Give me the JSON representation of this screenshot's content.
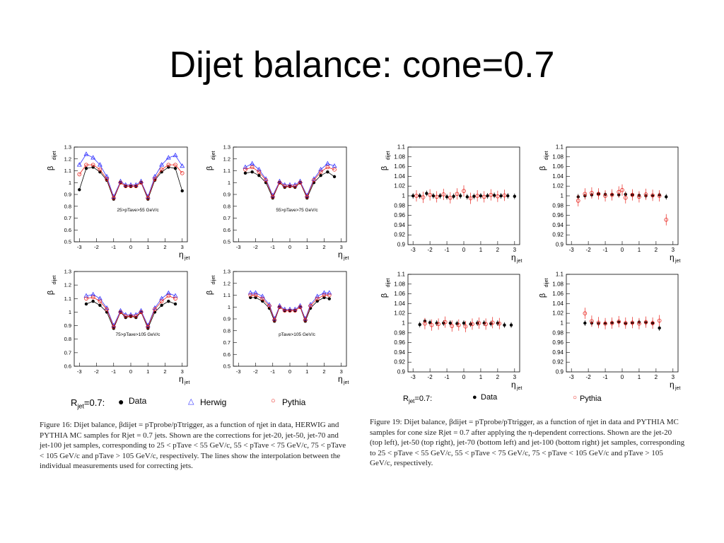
{
  "slide": {
    "title": "Dijet balance: cone=0.7"
  },
  "left_figure": {
    "legend": {
      "rjet_label": "R",
      "rjet_sub": "jet",
      "rjet_val": "=0.7:",
      "data": "Data",
      "herwig": "Herwig",
      "pythia": "Pythia"
    },
    "caption": "Figure 16: Dijet balance, βdijet = pTprobe/pTtrigger, as a function of ηjet in data, HERWIG and PYTHIA MC samples for Rjet = 0.7 jets. Shown are the corrections for jet-20, jet-50, jet-70 and jet-100 jet samples, corresponding to 25 < pTave < 55 GeV/c, 55 < pTave < 75 GeV/c, 75 < pTave < 105 GeV/c and pTave > 105 GeV/c, respectively. The lines show the interpolation between the individual measurements used for correcting jets."
  },
  "right_figure": {
    "legend": {
      "rjet_label": "R",
      "rjet_sub": "jet",
      "rjet_val": "=0.7:",
      "data": "Data",
      "pythia": "Pythia"
    },
    "caption": "Figure 19: Dijet balance, βdijet = pTprobe/pTtrigger, as a function of ηjet in data and PYTHIA MC samples for cone size Rjet = 0.7 after applying the η-dependent corrections. Shown are the jet-20 (top left), jet-50 (top right), jet-70 (bottom left) and jet-100 (bottom right) jet samples, corresponding to 25 < pTave < 55 GeV/c, 55 < pTave < 75 GeV/c, 75 < pTave < 105 GeV/c and pTave > 105 GeV/c, respectively."
  },
  "colors": {
    "data": "#000000",
    "herwig": "#3333ff",
    "pythia": "#e8231d"
  },
  "chart_data": [
    {
      "type": "scatter",
      "panel": "fig16-jet20",
      "label": "25>pT^ave>55 GeV/c",
      "ylabel": "β_dijet",
      "xlabel": "η_jet",
      "xlim": [
        -3.3,
        3.3
      ],
      "ylim": [
        0.5,
        1.3
      ],
      "yticks": [
        "0.5",
        "0.6",
        "0.7",
        "0.8",
        "0.9",
        "1",
        "1.1",
        "1.2",
        "1.3"
      ],
      "xticks": [
        "-3",
        "-2",
        "-1",
        "0",
        "1",
        "2",
        "3"
      ],
      "series": [
        {
          "name": "Data",
          "x": [
            -3.0,
            -2.6,
            -2.2,
            -1.8,
            -1.4,
            -1.0,
            -0.6,
            -0.3,
            0,
            0.3,
            0.6,
            1.0,
            1.4,
            1.8,
            2.2,
            2.6,
            3.0
          ],
          "y": [
            0.94,
            1.12,
            1.13,
            1.09,
            1.02,
            0.86,
            1.0,
            0.97,
            0.97,
            0.97,
            1.0,
            0.86,
            1.02,
            1.09,
            1.13,
            1.12,
            0.93
          ]
        },
        {
          "name": "Herwig",
          "x": [
            -3.0,
            -2.6,
            -2.2,
            -1.8,
            -1.4,
            -1.0,
            -0.6,
            -0.3,
            0,
            0.3,
            0.6,
            1.0,
            1.4,
            1.8,
            2.2,
            2.6,
            3.0
          ],
          "y": [
            1.15,
            1.24,
            1.21,
            1.15,
            1.05,
            0.88,
            1.01,
            0.98,
            0.98,
            0.98,
            1.01,
            0.88,
            1.05,
            1.15,
            1.21,
            1.23,
            1.14
          ]
        },
        {
          "name": "Pythia",
          "x": [
            -3.0,
            -2.6,
            -2.2,
            -1.8,
            -1.4,
            -1.0,
            -0.6,
            -0.3,
            0,
            0.3,
            0.6,
            1.0,
            1.4,
            1.8,
            2.2,
            2.6,
            3.0
          ],
          "y": [
            1.07,
            1.15,
            1.15,
            1.11,
            1.03,
            0.87,
            1.0,
            0.97,
            0.97,
            0.97,
            1.0,
            0.87,
            1.03,
            1.11,
            1.15,
            1.15,
            1.08
          ]
        }
      ]
    },
    {
      "type": "scatter",
      "panel": "fig16-jet50",
      "label": "55>pT^ave>75 GeV/c",
      "ylabel": "β_dijet",
      "xlabel": "η_jet",
      "xlim": [
        -3.3,
        3.3
      ],
      "ylim": [
        0.5,
        1.3
      ],
      "yticks": [
        "0.5",
        "0.6",
        "0.7",
        "0.8",
        "0.9",
        "1",
        "1.1",
        "1.2",
        "1.3"
      ],
      "xticks": [
        "-3",
        "-2",
        "-1",
        "0",
        "1",
        "2",
        "3"
      ],
      "series": [
        {
          "name": "Data",
          "x": [
            -2.6,
            -2.2,
            -1.8,
            -1.4,
            -1.0,
            -0.6,
            -0.3,
            0,
            0.3,
            0.6,
            1.0,
            1.4,
            1.8,
            2.2,
            2.6
          ],
          "y": [
            1.08,
            1.09,
            1.06,
            1.0,
            0.87,
            1.0,
            0.96,
            0.97,
            0.96,
            1.0,
            0.87,
            1.0,
            1.06,
            1.09,
            1.05
          ]
        },
        {
          "name": "Herwig",
          "x": [
            -2.6,
            -2.2,
            -1.8,
            -1.4,
            -1.0,
            -0.6,
            -0.3,
            0,
            0.3,
            0.6,
            1.0,
            1.4,
            1.8,
            2.2,
            2.6
          ],
          "y": [
            1.13,
            1.16,
            1.11,
            1.03,
            0.89,
            1.01,
            0.98,
            0.98,
            0.98,
            1.01,
            0.89,
            1.03,
            1.11,
            1.16,
            1.14
          ]
        },
        {
          "name": "Pythia",
          "x": [
            -2.6,
            -2.2,
            -1.8,
            -1.4,
            -1.0,
            -0.6,
            -0.3,
            0,
            0.3,
            0.6,
            1.0,
            1.4,
            1.8,
            2.2,
            2.6
          ],
          "y": [
            1.11,
            1.13,
            1.09,
            1.02,
            0.88,
            1.0,
            0.97,
            0.97,
            0.97,
            1.0,
            0.88,
            1.02,
            1.09,
            1.13,
            1.11
          ]
        }
      ]
    },
    {
      "type": "scatter",
      "panel": "fig16-jet70",
      "label": "75>pT^ave>105 GeV/c",
      "ylabel": "β_dijet",
      "xlabel": "η_jet",
      "xlim": [
        -3.3,
        3.3
      ],
      "ylim": [
        0.6,
        1.3
      ],
      "yticks": [
        "0.6",
        "0.7",
        "0.8",
        "0.9",
        "1",
        "1.1",
        "1.2",
        "1.3"
      ],
      "xticks": [
        "-3",
        "-2",
        "-1",
        "0",
        "1",
        "2",
        "3"
      ],
      "series": [
        {
          "name": "Data",
          "x": [
            -2.6,
            -2.2,
            -1.8,
            -1.4,
            -1.0,
            -0.6,
            -0.3,
            0,
            0.3,
            0.6,
            1.0,
            1.4,
            1.8,
            2.2,
            2.6
          ],
          "y": [
            1.06,
            1.08,
            1.05,
            1.0,
            0.88,
            1.0,
            0.96,
            0.97,
            0.96,
            1.0,
            0.88,
            1.0,
            1.05,
            1.08,
            1.06
          ]
        },
        {
          "name": "Herwig",
          "x": [
            -2.6,
            -2.2,
            -1.8,
            -1.4,
            -1.0,
            -0.6,
            -0.3,
            0,
            0.3,
            0.6,
            1.0,
            1.4,
            1.8,
            2.2,
            2.6
          ],
          "y": [
            1.12,
            1.13,
            1.1,
            1.03,
            0.9,
            1.01,
            0.98,
            0.98,
            0.98,
            1.01,
            0.9,
            1.03,
            1.1,
            1.14,
            1.12
          ]
        },
        {
          "name": "Pythia",
          "x": [
            -2.6,
            -2.2,
            -1.8,
            -1.4,
            -1.0,
            -0.6,
            -0.3,
            0,
            0.3,
            0.6,
            1.0,
            1.4,
            1.8,
            2.2,
            2.6
          ],
          "y": [
            1.1,
            1.11,
            1.08,
            1.02,
            0.89,
            1.0,
            0.97,
            0.97,
            0.97,
            1.0,
            0.89,
            1.02,
            1.08,
            1.12,
            1.1
          ]
        }
      ]
    },
    {
      "type": "scatter",
      "panel": "fig16-jet100",
      "label": "pT^ave>105 GeV/c",
      "ylabel": "β_dijet",
      "xlabel": "η_jet",
      "xlim": [
        -3.3,
        3.3
      ],
      "ylim": [
        0.5,
        1.3
      ],
      "yticks": [
        "0.5",
        "0.6",
        "0.7",
        "0.8",
        "0.9",
        "1",
        "1.1",
        "1.2",
        "1.3"
      ],
      "xticks": [
        "-3",
        "-2",
        "-1",
        "0",
        "1",
        "2",
        "3"
      ],
      "series": [
        {
          "name": "Data",
          "x": [
            -2.3,
            -2.0,
            -1.6,
            -1.2,
            -0.9,
            -0.6,
            -0.3,
            0,
            0.3,
            0.6,
            0.9,
            1.2,
            1.6,
            2.0,
            2.3
          ],
          "y": [
            1.08,
            1.08,
            1.05,
            0.99,
            0.88,
            1.0,
            0.97,
            0.97,
            0.97,
            1.0,
            0.88,
            0.99,
            1.05,
            1.08,
            1.07
          ]
        },
        {
          "name": "Herwig",
          "x": [
            -2.3,
            -2.0,
            -1.6,
            -1.2,
            -0.9,
            -0.6,
            -0.3,
            0,
            0.3,
            0.6,
            0.9,
            1.2,
            1.6,
            2.0,
            2.3
          ],
          "y": [
            1.12,
            1.12,
            1.09,
            1.02,
            0.9,
            1.01,
            0.98,
            0.98,
            0.98,
            1.01,
            0.9,
            1.02,
            1.09,
            1.12,
            1.12
          ]
        },
        {
          "name": "Pythia",
          "x": [
            -2.3,
            -2.0,
            -1.6,
            -1.2,
            -0.9,
            -0.6,
            -0.3,
            0,
            0.3,
            0.6,
            0.9,
            1.2,
            1.6,
            2.0,
            2.3
          ],
          "y": [
            1.1,
            1.1,
            1.07,
            1.01,
            0.89,
            1.0,
            0.97,
            0.97,
            0.97,
            1.0,
            0.89,
            1.01,
            1.07,
            1.1,
            1.1
          ]
        }
      ]
    },
    {
      "type": "scatter",
      "panel": "fig19-jet20",
      "ylabel": "β_dijet",
      "xlabel": "η_jet",
      "xlim": [
        -3.3,
        3.3
      ],
      "ylim": [
        0.9,
        1.1
      ],
      "yticks": [
        "0.9",
        "0.92",
        "0.94",
        "0.96",
        "0.98",
        "1",
        "1.02",
        "1.04",
        "1.06",
        "1.08",
        "1.1"
      ],
      "xticks": [
        "-3",
        "-2",
        "-1",
        "0",
        "1",
        "2",
        "3"
      ],
      "series": [
        {
          "name": "Data",
          "x": [
            -3.0,
            -2.6,
            -2.2,
            -1.8,
            -1.4,
            -1.0,
            -0.6,
            -0.2,
            0.2,
            0.6,
            1.0,
            1.4,
            1.8,
            2.2,
            2.6,
            3.0
          ],
          "y": [
            1.0,
            1.0,
            1.005,
            1.0,
            1.0,
            0.998,
            0.999,
            1.0,
            0.998,
            0.999,
            1.0,
            1.0,
            1.001,
            1.0,
            1.0,
            0.999
          ]
        },
        {
          "name": "Pythia",
          "x": [
            -2.8,
            -2.4,
            -2.0,
            -1.6,
            -1.2,
            -0.8,
            -0.4,
            0,
            0.4,
            0.8,
            1.2,
            1.6,
            2.0,
            2.4
          ],
          "y": [
            1.0,
            0.997,
            1.002,
            0.998,
            1.003,
            0.996,
            1.004,
            1.01,
            0.995,
            1.0,
            0.998,
            1.002,
            0.999,
            1.001
          ]
        }
      ]
    },
    {
      "type": "scatter",
      "panel": "fig19-jet50",
      "ylabel": "β_dijet",
      "xlabel": "η_jet",
      "xlim": [
        -3.3,
        3.3
      ],
      "ylim": [
        0.9,
        1.1
      ],
      "yticks": [
        "0.9",
        "0.92",
        "0.94",
        "0.96",
        "0.98",
        "1",
        "1.02",
        "1.04",
        "1.06",
        "1.08",
        "1.1"
      ],
      "xticks": [
        "-3",
        "-2",
        "-1",
        "0",
        "1",
        "2",
        "3"
      ],
      "series": [
        {
          "name": "Data",
          "x": [
            -2.6,
            -2.2,
            -1.8,
            -1.4,
            -1.0,
            -0.6,
            -0.2,
            0.2,
            0.6,
            1.0,
            1.4,
            1.8,
            2.2,
            2.6
          ],
          "y": [
            0.998,
            1.0,
            1.002,
            1.004,
            1.003,
            1.003,
            1.002,
            1.003,
            1.002,
            1.001,
            1.0,
            1.0,
            1.002,
            0.998
          ]
        },
        {
          "name": "Pythia",
          "x": [
            -2.6,
            -2.2,
            -1.8,
            -1.4,
            -1.0,
            -0.6,
            -0.2,
            0,
            0.2,
            0.6,
            1.0,
            1.4,
            1.8,
            2.2,
            2.6
          ],
          "y": [
            0.99,
            1.004,
            1.006,
            1.004,
            1.0,
            1.002,
            1.008,
            1.012,
            0.996,
            1.002,
            0.998,
            1.003,
            1.001,
            1.0,
            0.951
          ]
        }
      ]
    },
    {
      "type": "scatter",
      "panel": "fig19-jet70",
      "ylabel": "β_dijet",
      "xlabel": "η_jet",
      "xlim": [
        -3.3,
        3.3
      ],
      "ylim": [
        0.9,
        1.1
      ],
      "yticks": [
        "0.9",
        "0.92",
        "0.94",
        "0.96",
        "0.98",
        "1",
        "1.02",
        "1.04",
        "1.06",
        "1.08",
        "1.1"
      ],
      "xticks": [
        "-3",
        "-2",
        "-1",
        "0",
        "1",
        "2",
        "3"
      ],
      "series": [
        {
          "name": "Data",
          "x": [
            -2.6,
            -2.3,
            -2.0,
            -1.6,
            -1.2,
            -0.8,
            -0.4,
            0,
            0.4,
            0.8,
            1.2,
            1.6,
            2.0,
            2.4,
            2.8
          ],
          "y": [
            0.997,
            1.004,
            1.001,
            1.0,
            1.0,
            1.0,
            0.999,
            1.0,
            0.998,
            1.0,
            1.0,
            0.999,
            1.0,
            0.996,
            0.996
          ]
        },
        {
          "name": "Pythia",
          "x": [
            -2.3,
            -1.9,
            -1.5,
            -1.1,
            -0.7,
            -0.3,
            0.1,
            0.5,
            0.9,
            1.3,
            1.7,
            2.1
          ],
          "y": [
            0.999,
            0.996,
            0.998,
            1.002,
            0.994,
            0.996,
            0.993,
            0.998,
            1.0,
            0.998,
            1.001,
            0.999
          ]
        }
      ]
    },
    {
      "type": "scatter",
      "panel": "fig19-jet100",
      "ylabel": "β_dijet",
      "xlabel": "η_jet",
      "xlim": [
        -3.3,
        3.3
      ],
      "ylim": [
        0.9,
        1.1
      ],
      "yticks": [
        "0.9",
        "0.92",
        "0.94",
        "0.96",
        "0.98",
        "1",
        "1.02",
        "1.04",
        "1.06",
        "1.08",
        "1.1"
      ],
      "xticks": [
        "-3",
        "-2",
        "-1",
        "0",
        "1",
        "2",
        "3"
      ],
      "series": [
        {
          "name": "Data",
          "x": [
            -2.2,
            -1.8,
            -1.4,
            -1.0,
            -0.6,
            -0.2,
            0.2,
            0.6,
            1.0,
            1.4,
            1.8,
            2.2
          ],
          "y": [
            1.0,
            1.0,
            0.999,
            1.0,
            1.001,
            1.002,
            0.999,
            1.0,
            1.002,
            1.001,
            1.0,
            0.99
          ]
        },
        {
          "name": "Pythia",
          "x": [
            -2.2,
            -1.8,
            -1.4,
            -1.0,
            -0.6,
            -0.2,
            0.2,
            0.6,
            1.0,
            1.4,
            1.8,
            2.2
          ],
          "y": [
            1.02,
            1.004,
            1.001,
            0.999,
            1.0,
            1.003,
            1.0,
            1.001,
            0.999,
            1.002,
            1.0,
            1.005
          ]
        }
      ]
    }
  ]
}
